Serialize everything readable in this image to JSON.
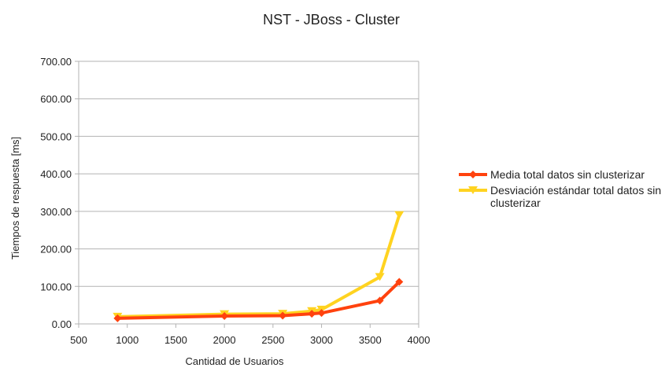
{
  "chart_data": {
    "type": "line",
    "title": "NST - JBoss - Cluster",
    "xlabel": "Cantidad de Usuarios",
    "ylabel": "Tiempos de respuesta [ms]",
    "xlim": [
      500,
      4000
    ],
    "ylim": [
      0,
      700
    ],
    "x_ticks": [
      "500",
      "1000",
      "1500",
      "2000",
      "2500",
      "3000",
      "3500",
      "4000"
    ],
    "y_ticks": [
      "0.00",
      "100.00",
      "200.00",
      "300.00",
      "400.00",
      "500.00",
      "600.00",
      "700.00"
    ],
    "grid": "horizontal",
    "legend_position": "right",
    "series": [
      {
        "name": "Media total datos sin clusterizar",
        "name_lines": [
          "Media total datos sin clusterizar"
        ],
        "marker": "diamond",
        "color": "#FF420E",
        "x": [
          900,
          2000,
          2600,
          2900,
          3000,
          3600,
          3800
        ],
        "y": [
          15,
          21,
          22,
          27,
          29,
          62,
          112
        ]
      },
      {
        "name": "Desviación estándar total datos sin clusterizar",
        "name_lines": [
          "Desviación estándar total datos sin",
          "clusterizar"
        ],
        "marker": "triangle-down",
        "color": "#FFD320",
        "x": [
          900,
          2000,
          2600,
          2900,
          3000,
          3600,
          3800
        ],
        "y": [
          19,
          26,
          27,
          34,
          38,
          125,
          290
        ]
      }
    ]
  }
}
